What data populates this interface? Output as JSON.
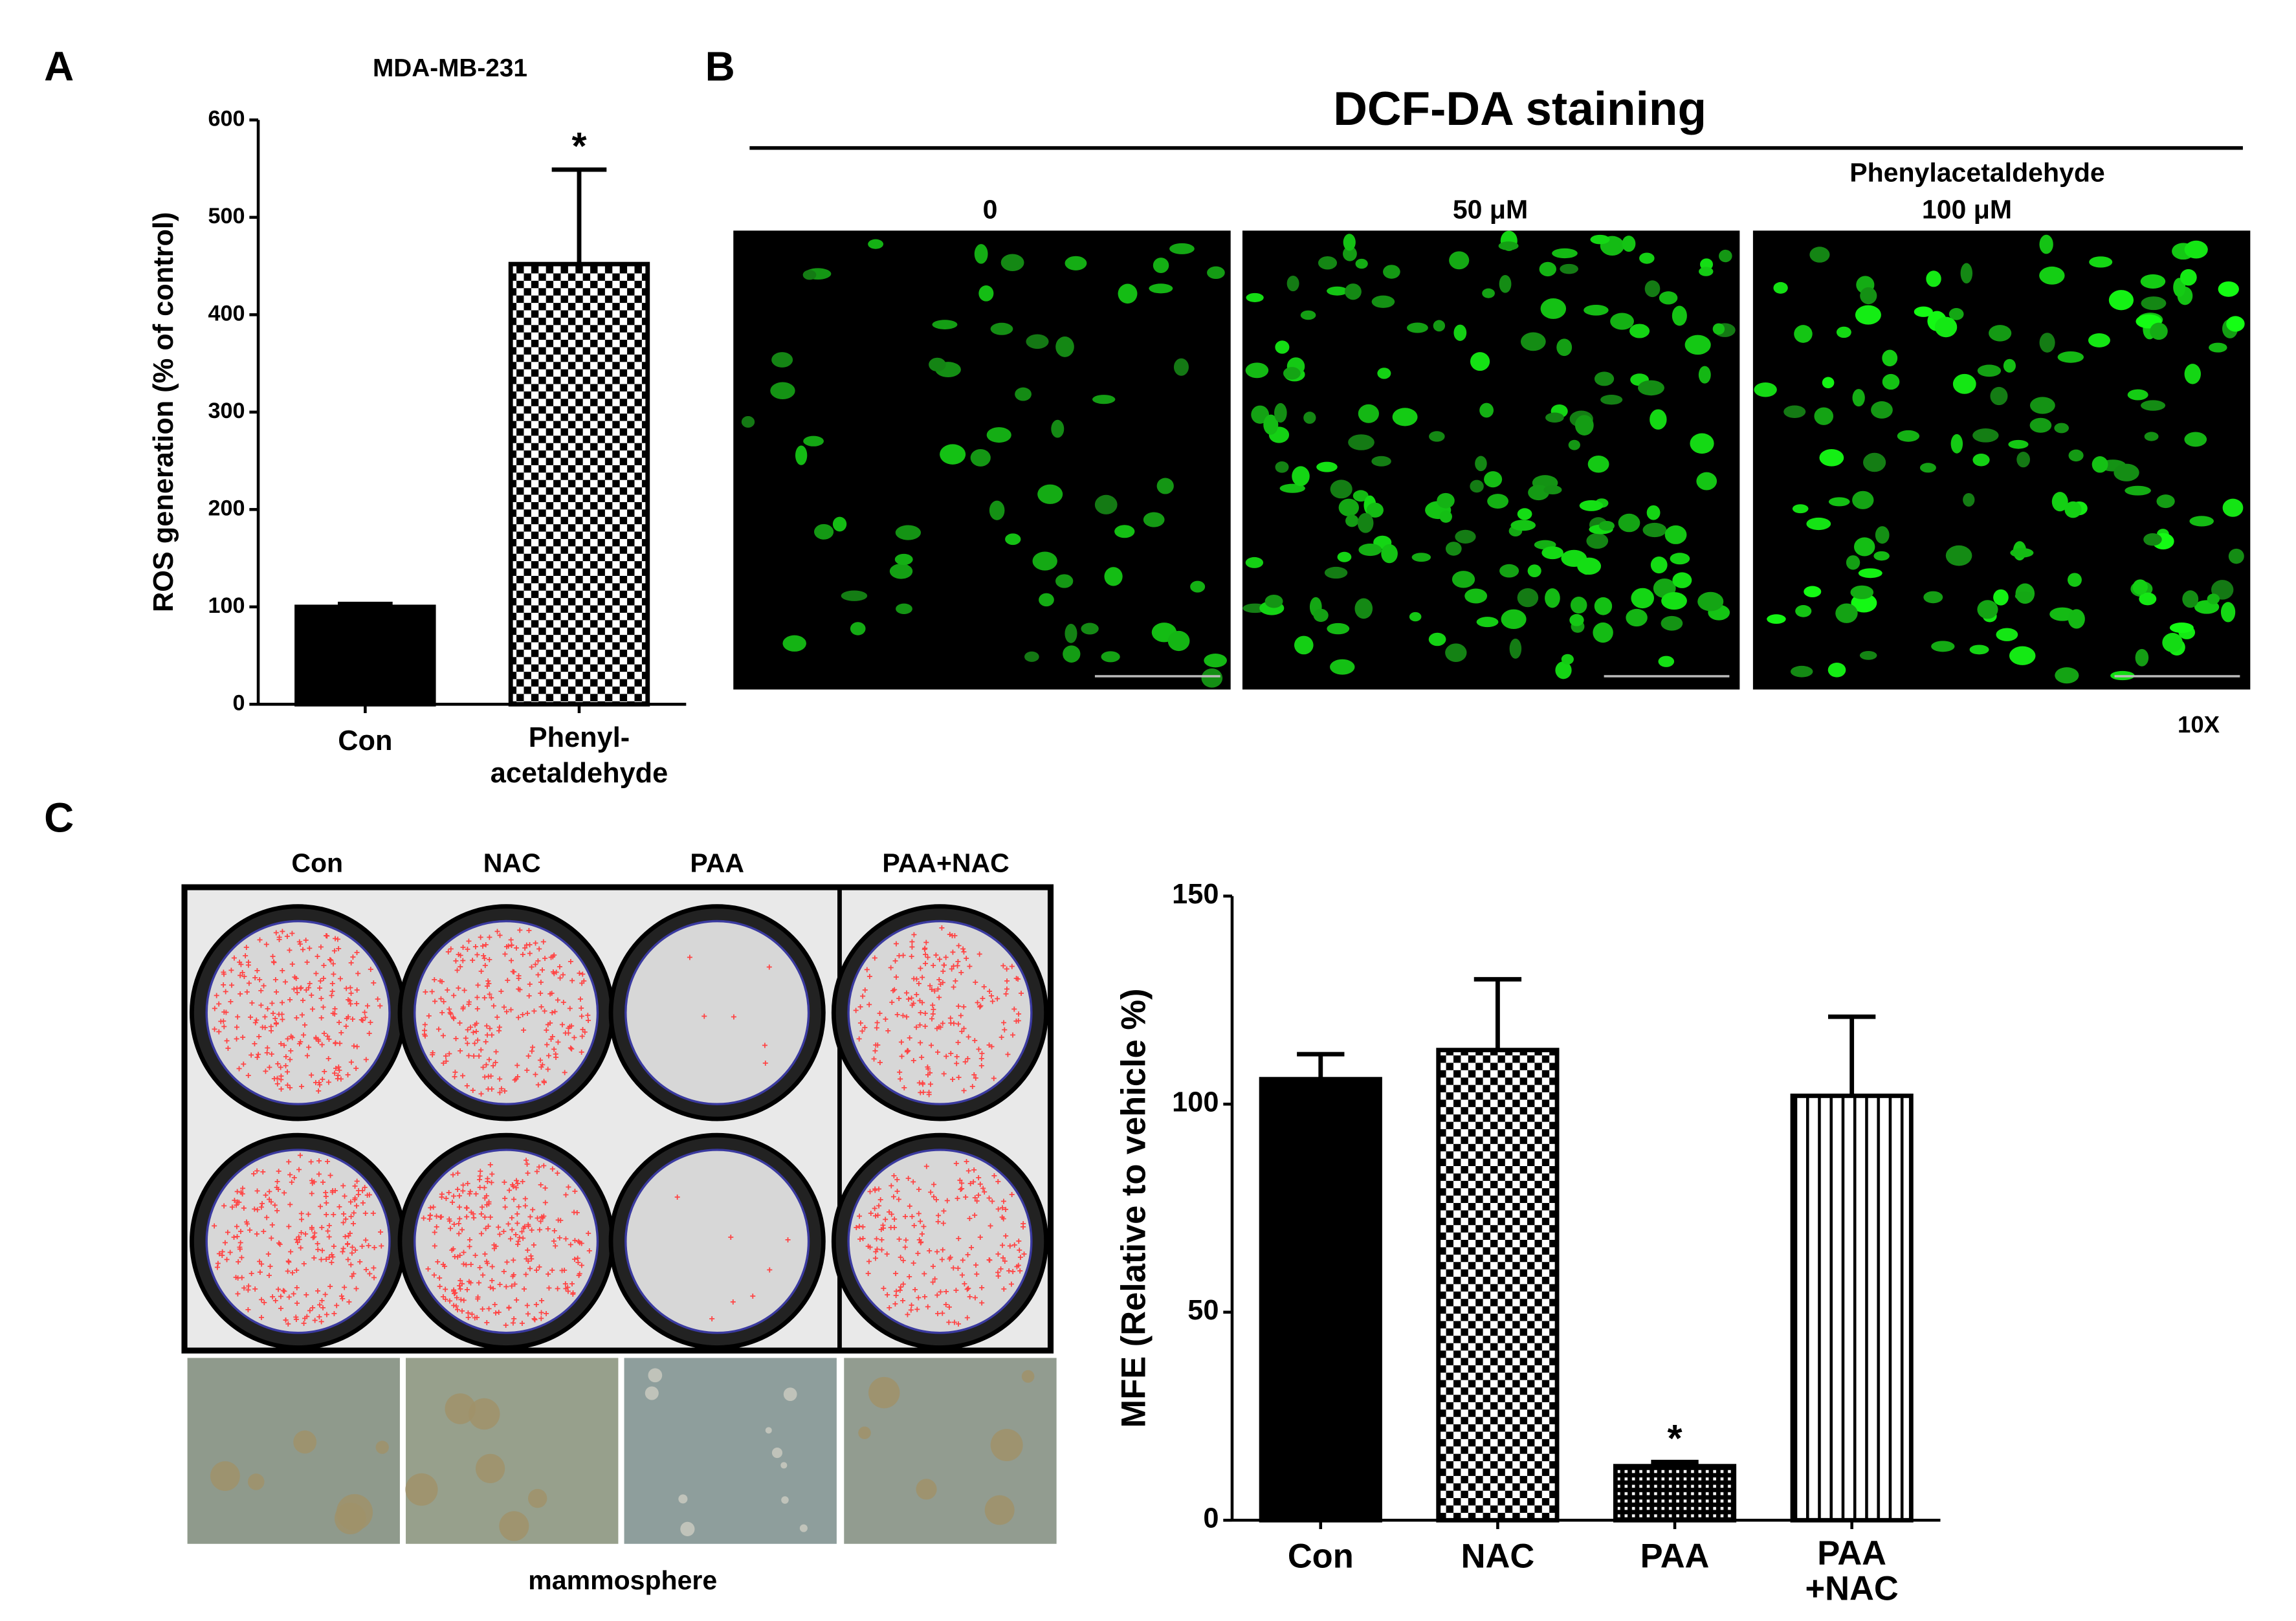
{
  "panel_labels": [
    "A",
    "B",
    "C"
  ],
  "chart_data": [
    {
      "type": "bar",
      "title": "MDA-MB-231",
      "y_label": "ROS generation (% of control)",
      "categories": [
        "Con",
        "Phenyl-\nacetaldehyde"
      ],
      "values": [
        100,
        452
      ],
      "errors": [
        3,
        97
      ],
      "significance": [
        null,
        "*"
      ],
      "color": "#000000",
      "patterns": [
        "solid",
        "checker"
      ],
      "ylim": [
        0,
        600
      ],
      "yticks": [
        0,
        100,
        200,
        300,
        400,
        500,
        600
      ]
    },
    {
      "type": "bar",
      "y_label": "MFE (Relative to vehicle %)",
      "categories": [
        "Con",
        "NAC",
        "PAA",
        "PAA\n+NAC"
      ],
      "values": [
        106,
        113,
        13,
        102
      ],
      "errors": [
        6,
        17,
        1,
        19
      ],
      "significance": [
        null,
        null,
        "*",
        null
      ],
      "color": "#000000",
      "patterns": [
        "solid",
        "checker",
        "dots",
        "stripes"
      ],
      "ylim": [
        0,
        150
      ],
      "yticks": [
        0,
        50,
        100,
        150
      ]
    }
  ],
  "staining": {
    "title": "DCF-DA staining",
    "treatment": "Phenylacetaldehyde",
    "doses": [
      "0",
      "50 μM",
      "100 μM"
    ],
    "magnification": "10X"
  },
  "colony": {
    "columns": [
      "Con",
      "NAC",
      "PAA",
      "PAA+NAC"
    ],
    "caption": "mammosphere"
  }
}
